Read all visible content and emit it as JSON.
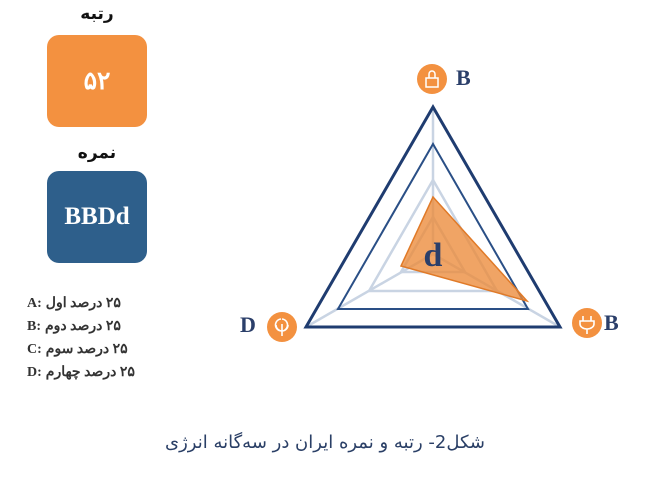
{
  "rank": {
    "label": "رتبه",
    "value": "۵۲"
  },
  "grade": {
    "label": "نمره",
    "value": "BBDd"
  },
  "legend": [
    {
      "key": "A:",
      "text": "۲۵ درصد اول"
    },
    {
      "key": "B:",
      "text": "۲۵ درصد دوم"
    },
    {
      "key": "C:",
      "text": "۲۵ درصد سوم"
    },
    {
      "key": "D:",
      "text": "۲۵ درصد چهارم"
    }
  ],
  "trilemma": {
    "top": "B",
    "right": "B",
    "left": "D",
    "center": "d"
  },
  "caption": "شکل2- رتبه و نمره ایران در سه‌گانه انرژی"
}
